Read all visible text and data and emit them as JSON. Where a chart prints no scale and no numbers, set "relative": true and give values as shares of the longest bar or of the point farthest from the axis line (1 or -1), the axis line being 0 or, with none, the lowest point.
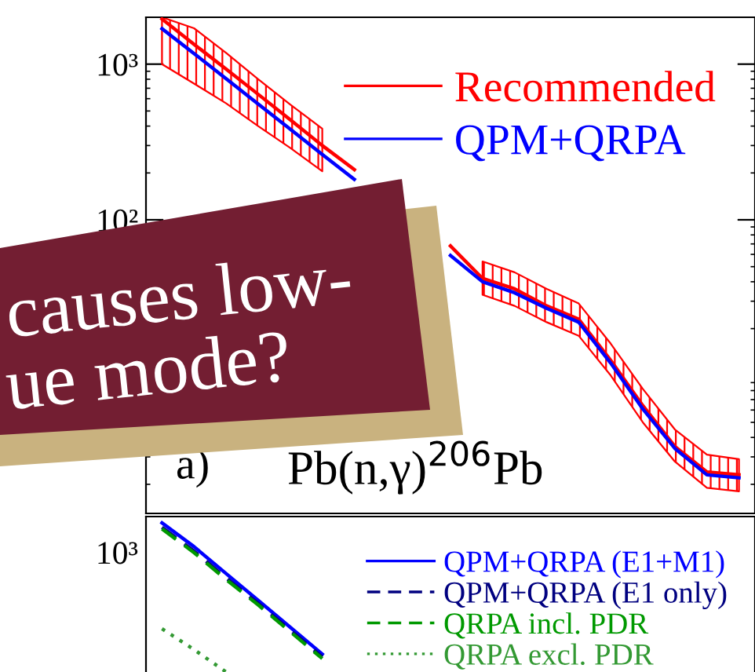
{
  "chart_data": [
    {
      "type": "line",
      "categories": [
        null,
        null,
        null,
        null,
        null,
        null,
        null,
        null,
        null,
        null,
        null,
        null,
        null,
        null,
        null,
        null,
        null,
        null,
        null
      ],
      "series": [
        {
          "name": "Recommended",
          "color": "#ff0000",
          "values": [
            1950,
            1340,
            930,
            640,
            440,
            300,
            210,
            null,
            null,
            68,
            42,
            36,
            28,
            23,
            12.5,
            6.4,
            3.5,
            2.4,
            2.3
          ],
          "lower": [
            1000,
            750,
            560,
            400,
            290,
            205,
            null,
            null,
            null,
            null,
            33,
            28,
            22,
            18,
            10,
            5.0,
            2.8,
            1.9,
            1.8
          ],
          "upper": [
            2000,
            1700,
            1180,
            800,
            550,
            385,
            null,
            null,
            null,
            null,
            54,
            46,
            36,
            29,
            16,
            8.2,
            4.5,
            3.1,
            2.9
          ]
        },
        {
          "name": "QPM+QRPA",
          "color": "#0000ff",
          "values": [
            1690,
            1170,
            806,
            555,
            382,
            263,
            182,
            null,
            null,
            59,
            40,
            34,
            27,
            22,
            12,
            6.1,
            3.4,
            2.3,
            2.2
          ]
        }
      ],
      "log": "y",
      "ylim": [
        1.3,
        2000
      ],
      "yticks": [
        {
          "value": 100,
          "label": "10²"
        },
        {
          "value": 1000,
          "label": "10³"
        }
      ],
      "legend": "top right",
      "grid": false,
      "annotations": [
        "a)",
        "Pb(n,γ)$^{206}$Pb",
        "causes low-",
        "ue mode?"
      ]
    },
    {
      "type": "line",
      "relative": true,
      "categories": [
        null,
        null,
        null,
        null,
        null,
        null,
        null,
        null,
        null,
        null,
        null,
        null,
        null,
        null,
        null,
        null,
        null,
        null,
        null
      ],
      "series": [
        {
          "name": "QPM+QRPA (E1+M1)",
          "color": "#0000ff",
          "line_style": "solid",
          "values": [
            1,
            0.84,
            0.66,
            0.48,
            0.3,
            0.12,
            null,
            null,
            null,
            null,
            null,
            null,
            null,
            null,
            null,
            null,
            null,
            null,
            null
          ]
        },
        {
          "name": "QPM+QRPA (E1 only)",
          "color": "#000080",
          "line_style": "dashed",
          "values": [
            0.97,
            0.81,
            0.63,
            0.46,
            0.28,
            0.1,
            null,
            null,
            null,
            null,
            null,
            null,
            null,
            null,
            null,
            null,
            null,
            null,
            null
          ]
        },
        {
          "name": "QRPA incl. PDR",
          "color": "#009900",
          "line_style": "dashed",
          "values": [
            0.96,
            0.8,
            0.62,
            0.45,
            0.27,
            0.09,
            null,
            null,
            null,
            null,
            null,
            null,
            null,
            null,
            null,
            null,
            null,
            null,
            null
          ]
        },
        {
          "name": "QRPA excl. PDR",
          "color": "#339933",
          "line_style": "dotted",
          "values": [
            0.29,
            0.15,
            0.0,
            null,
            null,
            null,
            null,
            null,
            null,
            null,
            null,
            null,
            null,
            null,
            null,
            null,
            null,
            null,
            null
          ]
        }
      ],
      "legend": "right",
      "grid": false,
      "annotations": [
        "10³"
      ]
    }
  ]
}
